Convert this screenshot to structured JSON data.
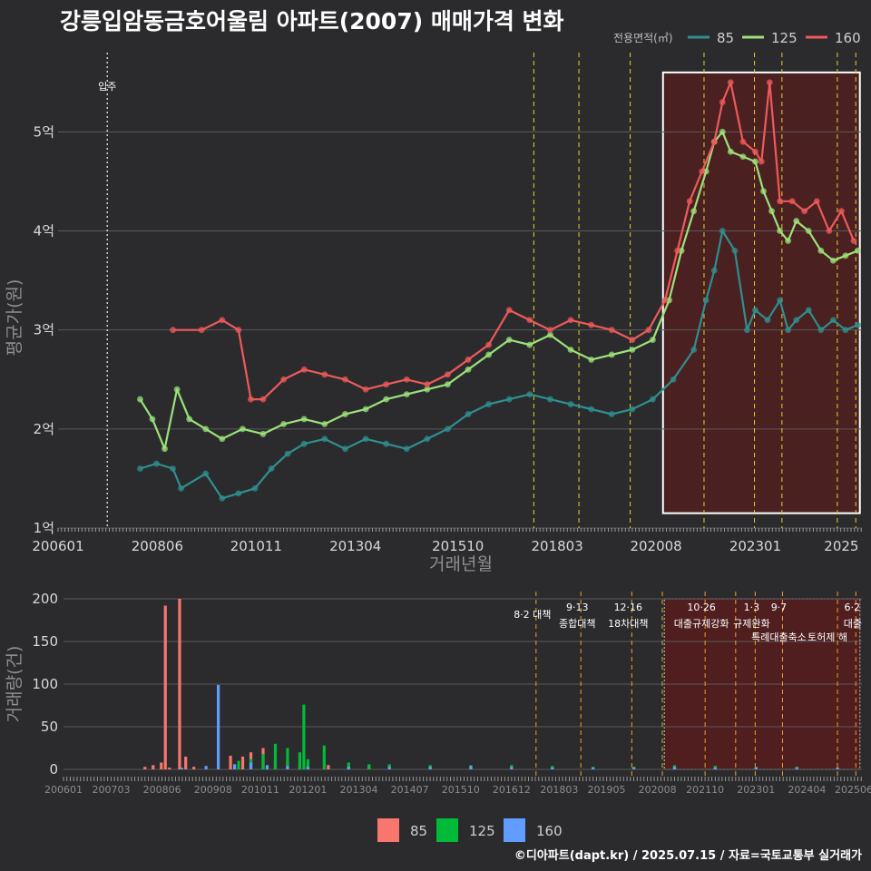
{
  "title": "강릉입암동금호어울림 아파트(2007) 매매가격 변화",
  "footer": "©디아파트(dapt.kr) / 2025.07.15 / 자료=국토교통부 실거래가",
  "colors": {
    "background": "#2b2b2d",
    "grid": "#5a5a5c",
    "s85_line": "#2f8f8f",
    "s125_line": "#9be27a",
    "s160_line": "#ee5a5a",
    "s85_bar": "#f8766d",
    "s125_bar": "#00ba38",
    "s160_bar": "#619cff",
    "vline": "#e6d22a",
    "vline_bottom": "#f0a020",
    "highlight": "#5a1c1c"
  },
  "chart_data": [
    {
      "type": "line",
      "title": "강릉입암동금호어울림 아파트(2007) 매매가격 변화",
      "xlabel": "거래년월",
      "ylabel": "평균가(원)",
      "legend_title": "전용면적(㎡)",
      "legend_position": "top-right",
      "xlim": [
        2006.0,
        2025.6
      ],
      "ylim": [
        1.0,
        5.8
      ],
      "x_ticks": [
        {
          "x": 2006.0,
          "label": "200601"
        },
        {
          "x": 2008.42,
          "label": "200806"
        },
        {
          "x": 2010.83,
          "label": "201011"
        },
        {
          "x": 2013.25,
          "label": "201304"
        },
        {
          "x": 2015.75,
          "label": "201510"
        },
        {
          "x": 2018.17,
          "label": "201803"
        },
        {
          "x": 2020.58,
          "label": "202008"
        },
        {
          "x": 2023.0,
          "label": "202301"
        },
        {
          "x": 2025.1,
          "label": "2025"
        }
      ],
      "y_ticks": [
        {
          "y": 1,
          "label": "1억"
        },
        {
          "y": 2,
          "label": "2억"
        },
        {
          "y": 3,
          "label": "3억"
        },
        {
          "y": 4,
          "label": "4억"
        },
        {
          "y": 5,
          "label": "5억"
        }
      ],
      "annotation": {
        "x": 2007.2,
        "label": "입주"
      },
      "highlight_range": [
        2020.75,
        2025.55
      ],
      "policy_lines": [
        2017.6,
        2018.7,
        2019.95,
        2021.75,
        2022.98,
        2023.65,
        2025.0,
        2025.45
      ],
      "series": [
        {
          "name": "85",
          "x": [
            2008.0,
            2008.4,
            2008.8,
            2009.0,
            2009.6,
            2010.0,
            2010.4,
            2010.8,
            2011.2,
            2011.6,
            2012.0,
            2012.5,
            2013.0,
            2013.5,
            2014.0,
            2014.5,
            2015.0,
            2015.5,
            2016.0,
            2016.5,
            2017.0,
            2017.5,
            2018.0,
            2018.5,
            2019.0,
            2019.5,
            2020.0,
            2020.5,
            2021.0,
            2021.5,
            2021.8,
            2022.0,
            2022.2,
            2022.5,
            2022.8,
            2023.0,
            2023.3,
            2023.6,
            2023.8,
            2024.0,
            2024.3,
            2024.6,
            2024.9,
            2025.2,
            2025.5
          ],
          "y": [
            1.6,
            1.65,
            1.6,
            1.4,
            1.55,
            1.3,
            1.35,
            1.4,
            1.6,
            1.75,
            1.85,
            1.9,
            1.8,
            1.9,
            1.85,
            1.8,
            1.9,
            2.0,
            2.15,
            2.25,
            2.3,
            2.35,
            2.3,
            2.25,
            2.2,
            2.15,
            2.2,
            2.3,
            2.5,
            2.8,
            3.3,
            3.6,
            4.0,
            3.8,
            3.0,
            3.2,
            3.1,
            3.3,
            3.0,
            3.1,
            3.2,
            3.0,
            3.1,
            3.0,
            3.05
          ]
        },
        {
          "name": "125",
          "x": [
            2008.0,
            2008.3,
            2008.6,
            2008.9,
            2009.2,
            2009.6,
            2010.0,
            2010.5,
            2011.0,
            2011.5,
            2012.0,
            2012.5,
            2013.0,
            2013.5,
            2014.0,
            2014.5,
            2015.0,
            2015.5,
            2016.0,
            2016.5,
            2017.0,
            2017.5,
            2018.0,
            2018.5,
            2019.0,
            2019.5,
            2020.0,
            2020.5,
            2020.9,
            2021.2,
            2021.5,
            2021.8,
            2022.0,
            2022.2,
            2022.4,
            2022.7,
            2023.0,
            2023.2,
            2023.4,
            2023.6,
            2023.8,
            2024.0,
            2024.3,
            2024.6,
            2024.9,
            2025.2,
            2025.5
          ],
          "y": [
            2.3,
            2.1,
            1.8,
            2.4,
            2.1,
            2.0,
            1.9,
            2.0,
            1.95,
            2.05,
            2.1,
            2.05,
            2.15,
            2.2,
            2.3,
            2.35,
            2.4,
            2.45,
            2.6,
            2.75,
            2.9,
            2.85,
            2.95,
            2.8,
            2.7,
            2.75,
            2.8,
            2.9,
            3.3,
            3.8,
            4.2,
            4.6,
            4.9,
            5.0,
            4.8,
            4.75,
            4.7,
            4.4,
            4.2,
            4.0,
            3.9,
            4.1,
            4.0,
            3.8,
            3.7,
            3.75,
            3.8
          ]
        },
        {
          "name": "160",
          "x": [
            2008.8,
            2009.5,
            2010.0,
            2010.4,
            2010.7,
            2011.0,
            2011.5,
            2012.0,
            2012.5,
            2013.0,
            2013.5,
            2014.0,
            2014.5,
            2015.0,
            2015.5,
            2016.0,
            2016.5,
            2017.0,
            2017.5,
            2018.0,
            2018.5,
            2019.0,
            2019.5,
            2020.0,
            2020.4,
            2020.8,
            2021.1,
            2021.4,
            2021.7,
            2022.0,
            2022.2,
            2022.4,
            2022.7,
            2023.0,
            2023.15,
            2023.35,
            2023.6,
            2023.9,
            2024.2,
            2024.5,
            2024.8,
            2025.1,
            2025.4
          ],
          "y": [
            3.0,
            3.0,
            3.1,
            3.0,
            2.3,
            2.3,
            2.5,
            2.6,
            2.55,
            2.5,
            2.4,
            2.45,
            2.5,
            2.45,
            2.55,
            2.7,
            2.85,
            3.2,
            3.1,
            3.0,
            3.1,
            3.05,
            3.0,
            2.9,
            3.0,
            3.3,
            3.8,
            4.3,
            4.6,
            4.9,
            5.3,
            5.5,
            4.9,
            4.8,
            4.7,
            5.5,
            4.3,
            4.3,
            4.2,
            4.3,
            4.0,
            4.2,
            3.9
          ]
        }
      ]
    },
    {
      "type": "bar",
      "ylabel": "거래량(건)",
      "xlim": [
        2006.0,
        2025.6
      ],
      "ylim": [
        0,
        200
      ],
      "x_ticks": [
        {
          "x": 2006.0,
          "label": "200601"
        },
        {
          "x": 2007.17,
          "label": "200703"
        },
        {
          "x": 2008.42,
          "label": "200806"
        },
        {
          "x": 2009.67,
          "label": "200908"
        },
        {
          "x": 2010.83,
          "label": "201011"
        },
        {
          "x": 2012.0,
          "label": "201201"
        },
        {
          "x": 2013.25,
          "label": "201304"
        },
        {
          "x": 2014.5,
          "label": "201407"
        },
        {
          "x": 2015.75,
          "label": "201510"
        },
        {
          "x": 2017.0,
          "label": "201612"
        },
        {
          "x": 2018.17,
          "label": "201803"
        },
        {
          "x": 2019.33,
          "label": "201905"
        },
        {
          "x": 2020.58,
          "label": "202008"
        },
        {
          "x": 2021.75,
          "label": "202110"
        },
        {
          "x": 2023.0,
          "label": "202301"
        },
        {
          "x": 2024.25,
          "label": "202404"
        },
        {
          "x": 2025.4,
          "label": "202506"
        }
      ],
      "y_ticks": [
        0,
        50,
        100,
        150,
        200
      ],
      "highlight_range": [
        2020.75,
        2025.55
      ],
      "policy_lines": [
        2017.6,
        2018.7,
        2019.95,
        2020.7,
        2021.75,
        2022.5,
        2022.98,
        2023.65,
        2025.0,
        2025.45
      ],
      "policy_annotations": [
        {
          "x": 2017.6,
          "line1": "8·2 대책",
          "line2": ""
        },
        {
          "x": 2018.7,
          "line1": "9·13",
          "line2": "종합대책"
        },
        {
          "x": 2019.95,
          "line1": "12·16",
          "line2": "18차대책"
        },
        {
          "x": 2021.75,
          "line1": "10·26",
          "line2": "대출규제강화"
        },
        {
          "x": 2022.98,
          "line1": "1·3",
          "line2": "규제완화"
        },
        {
          "x": 2023.65,
          "line1": "9·7",
          "line2": "특례대출축소"
        },
        {
          "x": 2024.6,
          "line1": "",
          "line2": "토허제 해"
        },
        {
          "x": 2025.45,
          "line1": "6·2",
          "line2": "대출"
        }
      ],
      "series": [
        {
          "name": "85",
          "x": [
            2008.0,
            2008.2,
            2008.4,
            2008.5,
            2008.6,
            2008.85,
            2009.0,
            2009.2,
            2010.1,
            2010.4,
            2010.6,
            2010.9,
            2011.2,
            2011.5,
            2011.8,
            2012.0,
            2012.5,
            2013.0,
            2013.5,
            2014.0,
            2015.0,
            2016.0,
            2017.0,
            2018.0,
            2019.0,
            2020.0,
            2021.0,
            2022.0,
            2023.0,
            2024.0,
            2025.0
          ],
          "y": [
            3,
            5,
            8,
            192,
            2,
            200,
            15,
            3,
            16,
            15,
            20,
            25,
            10,
            8,
            6,
            6,
            5,
            4,
            4,
            3,
            4,
            3,
            3,
            3,
            2,
            3,
            3,
            4,
            3,
            3,
            2
          ]
        },
        {
          "name": "125",
          "x": [
            2010.3,
            2010.6,
            2010.9,
            2011.2,
            2011.5,
            2011.8,
            2011.9,
            2012.0,
            2012.4,
            2013.0,
            2013.5,
            2014.0,
            2015.0,
            2016.0,
            2017.0,
            2018.0,
            2019.0,
            2020.0,
            2021.0,
            2022.0,
            2023.0,
            2024.0,
            2025.0
          ],
          "y": [
            10,
            12,
            18,
            30,
            25,
            20,
            76,
            12,
            28,
            8,
            6,
            6,
            5,
            5,
            5,
            4,
            3,
            3,
            5,
            4,
            3,
            3,
            2
          ]
        },
        {
          "name": "160",
          "x": [
            2008.9,
            2009.5,
            2009.8,
            2010.2,
            2010.6,
            2011.0,
            2011.5,
            2012.0,
            2013.0,
            2014.0,
            2015.0,
            2016.0,
            2017.0,
            2018.0,
            2019.0,
            2020.0,
            2021.0,
            2022.0,
            2023.0,
            2024.0,
            2025.0
          ],
          "y": [
            2,
            4,
            99,
            6,
            8,
            5,
            4,
            3,
            3,
            3,
            3,
            4,
            3,
            2,
            2,
            2,
            3,
            2,
            2,
            2,
            2
          ]
        }
      ]
    }
  ],
  "bottom_legend": [
    {
      "label": "85",
      "color": "#f8766d"
    },
    {
      "label": "125",
      "color": "#00ba38"
    },
    {
      "label": "160",
      "color": "#619cff"
    }
  ]
}
